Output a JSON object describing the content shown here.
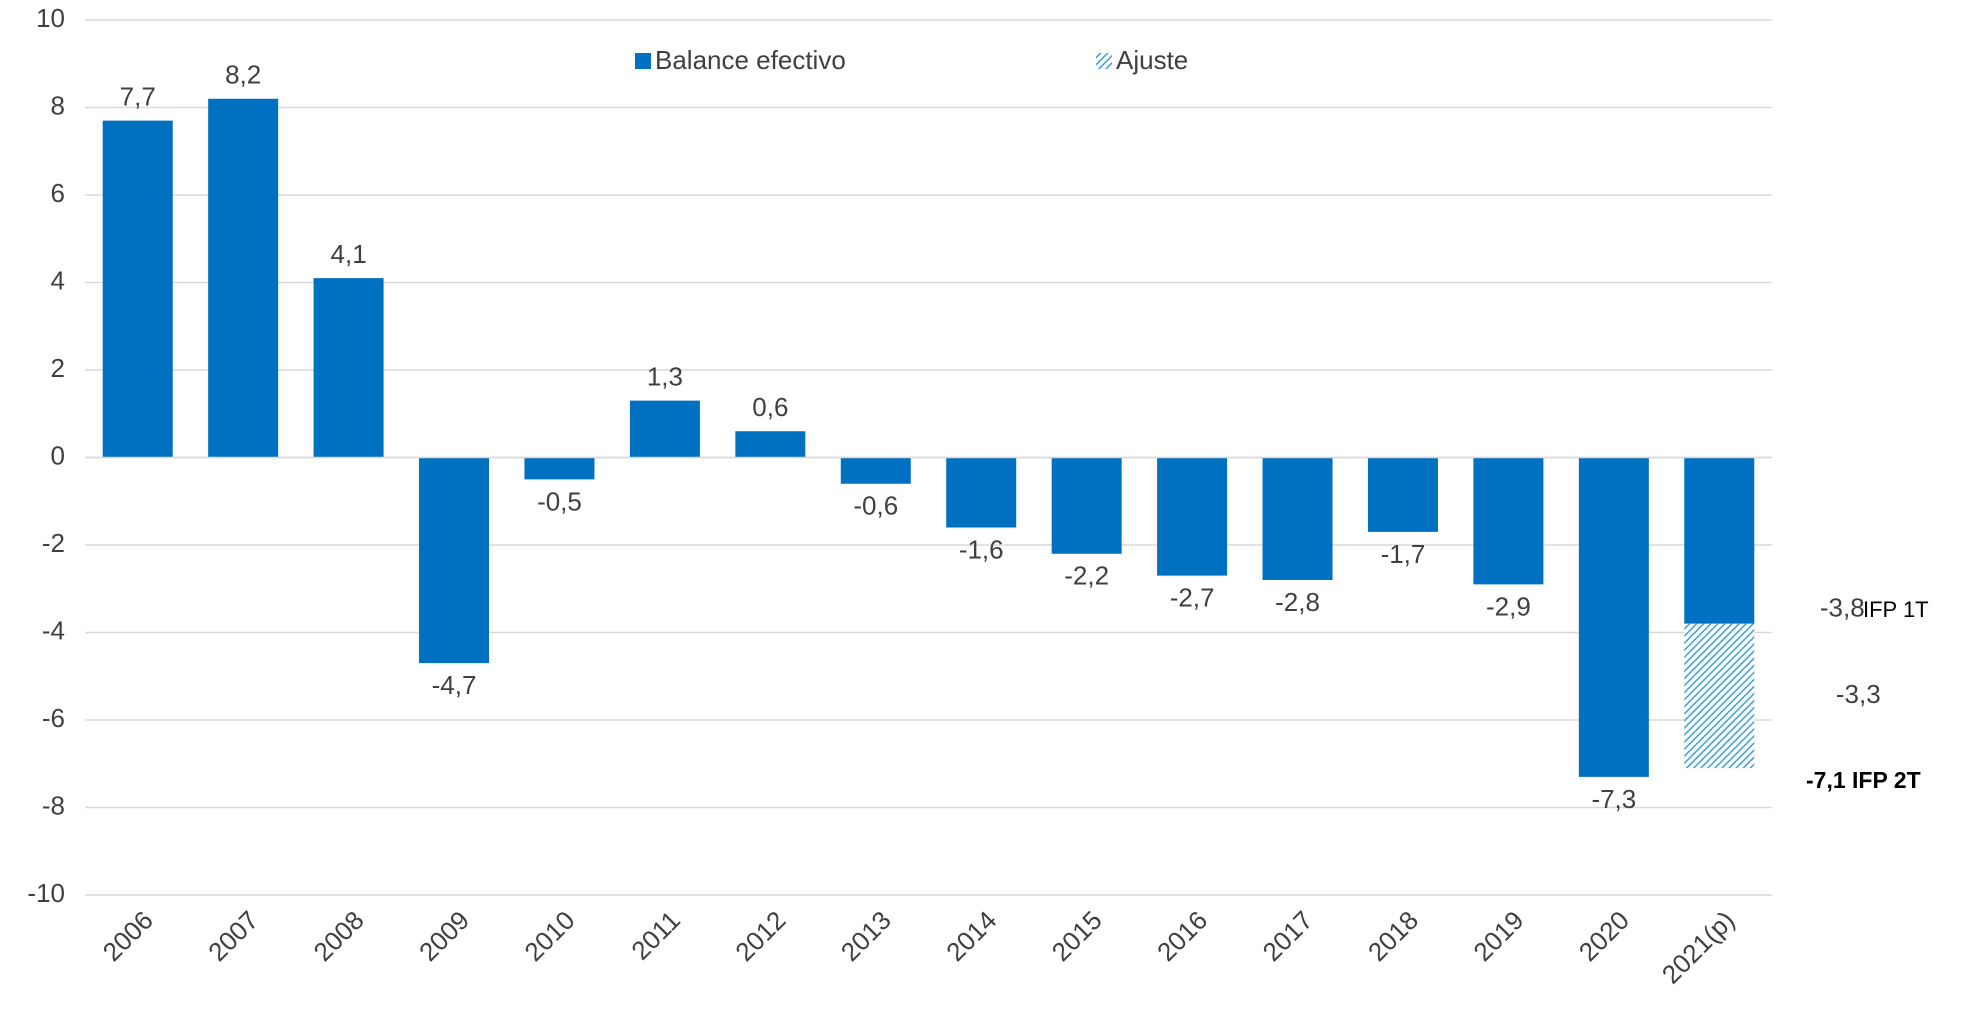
{
  "chart_data": {
    "type": "bar",
    "stacked": true,
    "categories": [
      "2006",
      "2007",
      "2008",
      "2009",
      "2010",
      "2011",
      "2012",
      "2013",
      "2014",
      "2015",
      "2016",
      "2017",
      "2018",
      "2019",
      "2020",
      "2021(p)"
    ],
    "series": [
      {
        "name": "Balance efectivo",
        "color": "#0070c0",
        "pattern": "solid",
        "values": [
          7.7,
          8.2,
          4.1,
          -4.7,
          -0.5,
          1.3,
          0.6,
          -0.6,
          -1.6,
          -2.2,
          -2.7,
          -2.8,
          -1.7,
          -2.9,
          -7.3,
          -3.8
        ],
        "value_labels": [
          "7,7",
          "8,2",
          "4,1",
          "-4,7",
          "-0,5",
          "1,3",
          "0,6",
          "-0,6",
          "-1,6",
          "-2,2",
          "-2,7",
          "-2,8",
          "-1,7",
          "-2,9",
          "-7,3",
          "-3,8"
        ]
      },
      {
        "name": "Ajuste",
        "color": "#3aa0e0",
        "pattern": "hatch",
        "values": [
          null,
          null,
          null,
          null,
          null,
          null,
          null,
          null,
          null,
          null,
          null,
          null,
          null,
          null,
          null,
          -3.3
        ],
        "value_labels": [
          null,
          null,
          null,
          null,
          null,
          null,
          null,
          null,
          null,
          null,
          null,
          null,
          null,
          null,
          null,
          "-3,3"
        ]
      }
    ],
    "ylim": [
      -10,
      10
    ],
    "yticks": [
      -10,
      -8,
      -6,
      -4,
      -2,
      0,
      2,
      4,
      6,
      8,
      10
    ],
    "grid": true,
    "legend": "top",
    "annotations": [
      {
        "text": "IFP 1T"
      },
      {
        "text": "-7,1 IFP 2T"
      }
    ]
  }
}
